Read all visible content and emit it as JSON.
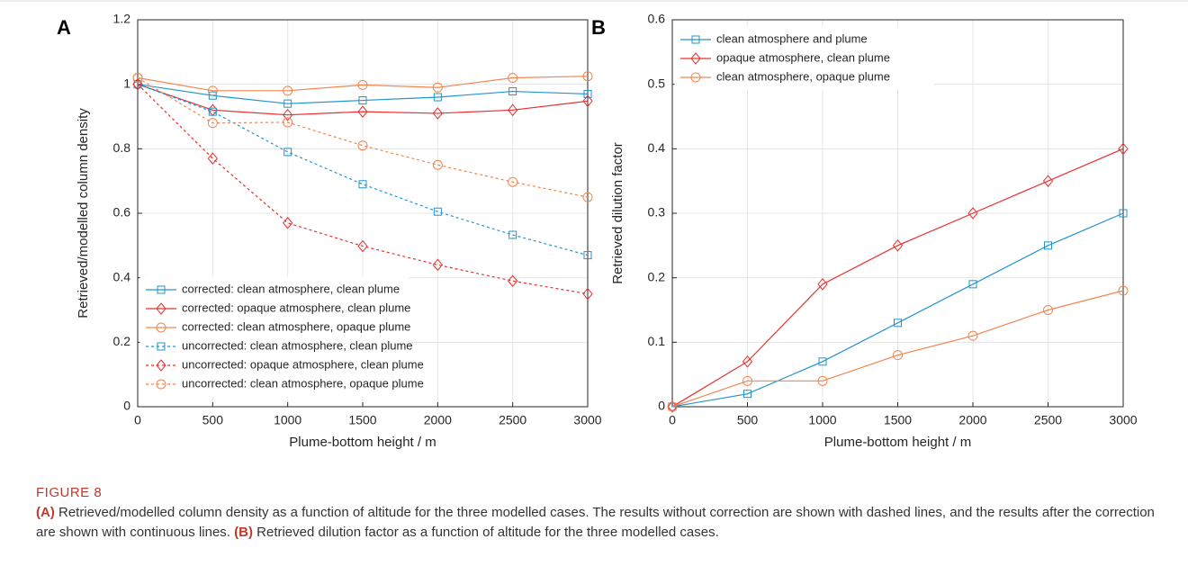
{
  "chart_data": [
    {
      "type": "line",
      "panel_label": "A",
      "x_label": "Plume-bottom height / m",
      "y_label": "Retrieved/modelled column density",
      "x": [
        0,
        500,
        1000,
        1500,
        2000,
        2500,
        3000
      ],
      "xlim": [
        0,
        3000
      ],
      "xticks": [
        0,
        500,
        1000,
        1500,
        2000,
        2500,
        3000
      ],
      "ylim": [
        0,
        1.2
      ],
      "yticks": [
        0,
        0.2,
        0.4,
        0.6,
        0.8,
        1,
        1.2
      ],
      "grid": true,
      "legend": "lower left",
      "series": [
        {
          "name": "corrected: clean atmosphere, clean plume",
          "color": "#2394cf",
          "marker": "square",
          "dashed": false,
          "values": [
            1.0,
            0.965,
            0.94,
            0.95,
            0.96,
            0.978,
            0.97
          ]
        },
        {
          "name": "corrected: opaque atmosphere, clean plume",
          "color": "#e8302e",
          "marker": "diamond",
          "dashed": false,
          "values": [
            1.0,
            0.92,
            0.905,
            0.915,
            0.91,
            0.92,
            0.948
          ]
        },
        {
          "name": "corrected: clean atmosphere, opaque plume",
          "color": "#f08650",
          "marker": "circle",
          "dashed": false,
          "values": [
            1.02,
            0.98,
            0.98,
            0.998,
            0.99,
            1.02,
            1.025
          ]
        },
        {
          "name": "uncorrected: clean atmosphere, clean plume",
          "color": "#2394cf",
          "marker": "square",
          "dashed": true,
          "values": [
            1.0,
            0.915,
            0.79,
            0.69,
            0.605,
            0.533,
            0.47
          ]
        },
        {
          "name": "uncorrected: opaque atmosphere, clean plume",
          "color": "#e8302e",
          "marker": "diamond",
          "dashed": true,
          "values": [
            1.0,
            0.77,
            0.57,
            0.498,
            0.44,
            0.39,
            0.35
          ]
        },
        {
          "name": "uncorrected: clean atmosphere, opaque plume",
          "color": "#f08650",
          "marker": "circle",
          "dashed": true,
          "values": [
            1.02,
            0.88,
            0.882,
            0.81,
            0.75,
            0.697,
            0.65
          ]
        }
      ]
    },
    {
      "type": "line",
      "panel_label": "B",
      "x_label": "Plume-bottom height / m",
      "y_label": "Retrieved dilution factor",
      "x": [
        0,
        500,
        1000,
        1500,
        2000,
        2500,
        3000
      ],
      "xlim": [
        0,
        3000
      ],
      "xticks": [
        0,
        500,
        1000,
        1500,
        2000,
        2500,
        3000
      ],
      "ylim": [
        0,
        0.6
      ],
      "yticks": [
        0,
        0.1,
        0.2,
        0.3,
        0.4,
        0.5,
        0.6
      ],
      "grid": true,
      "legend": "upper left",
      "series": [
        {
          "name": "clean atmosphere and plume",
          "color": "#2394cf",
          "marker": "square",
          "dashed": false,
          "values": [
            0,
            0.02,
            0.07,
            0.13,
            0.19,
            0.25,
            0.3
          ]
        },
        {
          "name": "opaque atmosphere, clean plume",
          "color": "#e8302e",
          "marker": "diamond",
          "dashed": false,
          "values": [
            0,
            0.07,
            0.19,
            0.25,
            0.3,
            0.35,
            0.4
          ]
        },
        {
          "name": "clean atmosphere, opaque plume",
          "color": "#f08650",
          "marker": "circle",
          "dashed": false,
          "values": [
            0,
            0.04,
            0.04,
            0.08,
            0.11,
            0.15,
            0.18
          ]
        }
      ]
    }
  ],
  "caption": {
    "label": "FIGURE 8",
    "a_tag": "(A)",
    "a_text": "Retrieved/modelled column density as a function of altitude for the three modelled cases. The results without correction are shown with dashed lines, and the results after the correction are shown with continuous lines.",
    "b_tag": "(B)",
    "b_text": "Retrieved dilution factor as a function of altitude for the three modelled cases."
  }
}
